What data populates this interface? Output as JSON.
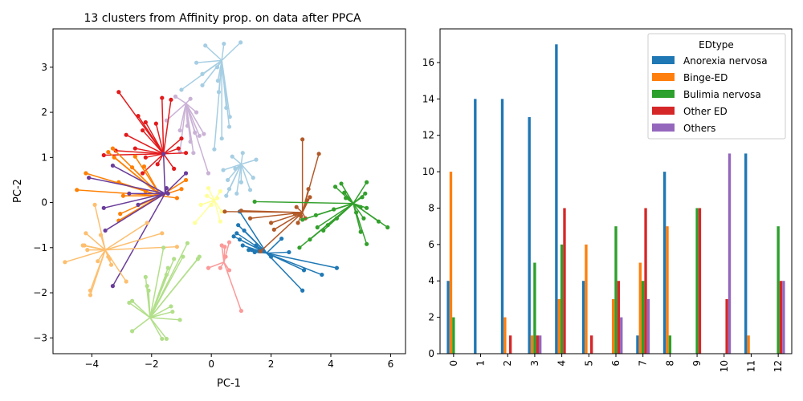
{
  "chart_data": [
    {
      "type": "scatter",
      "title": "13 clusters from Affinity prop. on data after PPCA",
      "xlabel": "PC-1",
      "ylabel": "PC-2",
      "xlim": [
        -5.3,
        6.5
      ],
      "ylim": [
        -3.35,
        3.85
      ],
      "xticks": [
        -4,
        -2,
        0,
        2,
        4,
        6
      ],
      "yticks": [
        -3,
        -2,
        -1,
        0,
        1,
        2,
        3
      ],
      "grid": false,
      "clusters": [
        {
          "color": "#a6cee3",
          "center": [
            0.35,
            3.15
          ],
          "points": [
            [
              -0.2,
              3.48
            ],
            [
              0.42,
              3.52
            ],
            [
              0.98,
              3.55
            ],
            [
              -0.5,
              3.1
            ],
            [
              -0.3,
              2.85
            ],
            [
              0.2,
              3.0
            ],
            [
              -1.0,
              2.5
            ],
            [
              -0.3,
              2.6
            ],
            [
              0.25,
              2.45
            ],
            [
              0.5,
              2.1
            ],
            [
              0.62,
              1.9
            ],
            [
              0.6,
              1.68
            ],
            [
              0.1,
              1.18
            ],
            [
              0.35,
              1.42
            ],
            [
              0.22,
              2.7
            ]
          ]
        },
        {
          "color": "#a6cee3",
          "center": [
            1.0,
            0.85
          ],
          "points": [
            [
              0.7,
              1.02
            ],
            [
              1.05,
              1.1
            ],
            [
              1.5,
              0.95
            ],
            [
              0.4,
              0.72
            ],
            [
              0.55,
              0.5
            ],
            [
              0.6,
              0.3
            ],
            [
              0.85,
              0.2
            ],
            [
              1.0,
              0.45
            ],
            [
              1.3,
              0.28
            ],
            [
              0.5,
              0.15
            ],
            [
              1.4,
              0.55
            ],
            [
              0.8,
              0.75
            ]
          ]
        },
        {
          "color": "#cab2d6",
          "center": [
            -0.85,
            2.2
          ],
          "points": [
            [
              -1.2,
              2.35
            ],
            [
              -0.7,
              2.3
            ],
            [
              -1.5,
              1.82
            ],
            [
              -1.05,
              1.6
            ],
            [
              -0.8,
              1.7
            ],
            [
              -0.55,
              1.55
            ],
            [
              -0.4,
              1.48
            ],
            [
              -0.25,
              1.52
            ],
            [
              -1.05,
              1.12
            ],
            [
              -0.6,
              1.1
            ],
            [
              -0.1,
              0.65
            ],
            [
              -0.5,
              2.0
            ],
            [
              -0.7,
              1.35
            ]
          ]
        },
        {
          "color": "#e31a1c",
          "center": [
            -1.6,
            1.08
          ],
          "points": [
            [
              -3.1,
              2.45
            ],
            [
              -2.45,
              1.92
            ],
            [
              -2.2,
              1.78
            ],
            [
              -1.65,
              2.32
            ],
            [
              -1.35,
              2.28
            ],
            [
              -2.85,
              1.5
            ],
            [
              -2.3,
              1.6
            ],
            [
              -1.85,
              1.75
            ],
            [
              -1.0,
              1.42
            ],
            [
              -2.55,
              1.2
            ],
            [
              -3.2,
              1.15
            ],
            [
              -3.6,
              1.05
            ],
            [
              -2.2,
              1.0
            ],
            [
              -1.1,
              1.2
            ],
            [
              -0.85,
              1.1
            ],
            [
              -2.3,
              0.65
            ],
            [
              -1.8,
              0.85
            ],
            [
              -1.25,
              0.75
            ]
          ]
        },
        {
          "color": "#ff7f00",
          "center": [
            -1.7,
            0.15
          ],
          "points": [
            [
              -4.2,
              0.65
            ],
            [
              -4.5,
              0.28
            ],
            [
              -3.3,
              1.2
            ],
            [
              -3.45,
              1.12
            ],
            [
              -3.25,
              1.0
            ],
            [
              -2.55,
              1.02
            ],
            [
              -2.25,
              0.8
            ],
            [
              -2.65,
              0.78
            ],
            [
              -3.1,
              0.45
            ],
            [
              -2.95,
              0.15
            ],
            [
              -3.05,
              -0.25
            ],
            [
              -3.1,
              -0.4
            ],
            [
              -1.15,
              0.1
            ],
            [
              -1.0,
              0.3
            ],
            [
              -0.85,
              0.5
            ],
            [
              -2.2,
              0.25
            ]
          ]
        },
        {
          "color": "#6a3d9a",
          "center": [
            -1.55,
            0.2
          ],
          "points": [
            [
              -3.3,
              -1.85
            ],
            [
              -3.55,
              -0.62
            ],
            [
              -3.6,
              -0.12
            ],
            [
              -3.3,
              0.82
            ],
            [
              -4.1,
              0.55
            ],
            [
              -2.75,
              0.2
            ],
            [
              -2.45,
              -0.05
            ],
            [
              -1.5,
              0.32
            ],
            [
              -1.45,
              0.2
            ],
            [
              -0.85,
              0.65
            ],
            [
              -1.6,
              1.08
            ]
          ]
        },
        {
          "color": "#ffff99",
          "center": [
            0.1,
            0.05
          ],
          "points": [
            [
              -0.1,
              0.32
            ],
            [
              0.3,
              0.25
            ],
            [
              -0.35,
              -0.05
            ],
            [
              -0.55,
              -0.45
            ],
            [
              0.35,
              -0.2
            ],
            [
              0.3,
              -0.42
            ],
            [
              0.0,
              -0.05
            ],
            [
              0.2,
              0.1
            ],
            [
              -0.15,
              0.15
            ]
          ]
        },
        {
          "color": "#fdbf6f",
          "center": [
            -3.55,
            -1.05
          ],
          "points": [
            [
              -4.9,
              -1.32
            ],
            [
              -4.3,
              -0.95
            ],
            [
              -4.2,
              -0.68
            ],
            [
              -4.15,
              -1.05
            ],
            [
              -4.05,
              -1.95
            ],
            [
              -4.05,
              -2.05
            ],
            [
              -3.9,
              -0.05
            ],
            [
              -3.7,
              -0.72
            ],
            [
              -3.8,
              -1.3
            ],
            [
              -3.45,
              -1.2
            ],
            [
              -3.4,
              -1.25
            ],
            [
              -3.35,
              -1.38
            ],
            [
              -2.85,
              -1.75
            ],
            [
              -2.15,
              -0.45
            ],
            [
              -1.65,
              -0.68
            ],
            [
              -1.15,
              -0.98
            ],
            [
              -4.25,
              -0.95
            ]
          ]
        },
        {
          "color": "#b2df8a",
          "center": [
            -2.05,
            -2.55
          ],
          "points": [
            [
              -2.65,
              -2.18
            ],
            [
              -2.75,
              -2.22
            ],
            [
              -2.65,
              -2.85
            ],
            [
              -2.2,
              -1.65
            ],
            [
              -2.15,
              -1.85
            ],
            [
              -2.1,
              -1.95
            ],
            [
              -1.6,
              -1.0
            ],
            [
              -1.5,
              -1.6
            ],
            [
              -1.45,
              -1.45
            ],
            [
              -1.35,
              -2.3
            ],
            [
              -1.3,
              -2.42
            ],
            [
              -1.05,
              -2.6
            ],
            [
              -1.5,
              -3.02
            ],
            [
              -1.65,
              -3.02
            ],
            [
              -0.95,
              -1.2
            ],
            [
              -0.8,
              -0.9
            ],
            [
              -0.45,
              -1.25
            ],
            [
              -0.4,
              -1.2
            ],
            [
              -1.25,
              -1.25
            ]
          ]
        },
        {
          "color": "#fb9a99",
          "center": [
            0.42,
            -1.32
          ],
          "points": [
            [
              0.35,
              -0.95
            ],
            [
              0.45,
              -0.98
            ],
            [
              0.6,
              -0.88
            ],
            [
              0.3,
              -1.45
            ],
            [
              0.6,
              -1.5
            ],
            [
              1.0,
              -2.4
            ],
            [
              -0.1,
              -1.45
            ],
            [
              0.48,
              -1.2
            ]
          ]
        },
        {
          "color": "#1f78b4",
          "center": [
            1.85,
            -1.12
          ],
          "points": [
            [
              0.75,
              -0.75
            ],
            [
              0.9,
              -0.5
            ],
            [
              0.85,
              -0.68
            ],
            [
              0.95,
              -0.82
            ],
            [
              1.1,
              -0.62
            ],
            [
              1.25,
              -1.05
            ],
            [
              1.35,
              -1.05
            ],
            [
              1.45,
              -1.1
            ],
            [
              1.6,
              -1.08
            ],
            [
              1.5,
              -0.95
            ],
            [
              2.0,
              -1.2
            ],
            [
              2.35,
              -0.8
            ],
            [
              2.6,
              -1.1
            ],
            [
              3.05,
              -1.95
            ],
            [
              3.1,
              -1.5
            ],
            [
              3.7,
              -1.6
            ],
            [
              4.2,
              -1.45
            ],
            [
              1.05,
              -0.95
            ],
            [
              0.95,
              -0.2
            ]
          ]
        },
        {
          "color": "#b15928",
          "center": [
            3.05,
            -0.22
          ],
          "points": [
            [
              3.05,
              1.4
            ],
            [
              3.6,
              1.08
            ],
            [
              3.25,
              0.3
            ],
            [
              3.3,
              0.12
            ],
            [
              3.2,
              0.05
            ],
            [
              2.85,
              -0.1
            ],
            [
              2.8,
              -0.25
            ],
            [
              3.0,
              -0.3
            ],
            [
              3.15,
              -0.35
            ],
            [
              2.9,
              -0.45
            ],
            [
              2.0,
              -0.45
            ],
            [
              1.3,
              -0.35
            ],
            [
              0.45,
              -0.2
            ],
            [
              1.0,
              -0.18
            ],
            [
              1.65,
              -1.08
            ],
            [
              2.1,
              -0.6
            ]
          ]
        },
        {
          "color": "#33a02c",
          "center": [
            4.75,
            -0.02
          ],
          "points": [
            [
              1.45,
              0.02
            ],
            [
              4.15,
              0.35
            ],
            [
              4.35,
              0.42
            ],
            [
              4.45,
              0.22
            ],
            [
              4.5,
              0.1
            ],
            [
              5.2,
              0.45
            ],
            [
              5.15,
              0.2
            ],
            [
              5.05,
              0.12
            ],
            [
              5.0,
              -0.1
            ],
            [
              4.85,
              -0.22
            ],
            [
              5.1,
              -0.35
            ],
            [
              5.2,
              -0.12
            ],
            [
              5.6,
              -0.42
            ],
            [
              5.9,
              -0.55
            ],
            [
              5.0,
              -0.65
            ],
            [
              5.2,
              -0.92
            ],
            [
              4.1,
              -0.15
            ],
            [
              4.2,
              -0.35
            ],
            [
              3.9,
              -0.5
            ],
            [
              3.75,
              -0.62
            ],
            [
              3.55,
              -0.55
            ],
            [
              3.5,
              -0.28
            ],
            [
              3.3,
              -0.82
            ],
            [
              3.05,
              -0.38
            ],
            [
              2.95,
              -1.0
            ]
          ]
        }
      ]
    },
    {
      "type": "bar",
      "categories": [
        "0",
        "1",
        "2",
        "3",
        "4",
        "5",
        "6",
        "7",
        "8",
        "9",
        "10",
        "11",
        "12"
      ],
      "xlabel": "",
      "ylabel": "",
      "ylim": [
        0,
        17.85
      ],
      "yticks": [
        0,
        2,
        4,
        6,
        8,
        10,
        12,
        14,
        16
      ],
      "legend_title": "EDtype",
      "legend_position": "top-right",
      "series": [
        {
          "name": "Anorexia nervosa",
          "color": "#1f77b4",
          "values": [
            4,
            14,
            14,
            13,
            17,
            4,
            0,
            1,
            10,
            0,
            0,
            11,
            0
          ]
        },
        {
          "name": "Binge-ED",
          "color": "#ff7f0e",
          "values": [
            10,
            0,
            2,
            1,
            3,
            6,
            3,
            5,
            7,
            0,
            0,
            1,
            0
          ]
        },
        {
          "name": "Bulimia nervosa",
          "color": "#2ca02c",
          "values": [
            2,
            0,
            0,
            5,
            6,
            0,
            7,
            4,
            1,
            8,
            0,
            0,
            7
          ]
        },
        {
          "name": "Other ED",
          "color": "#d62728",
          "values": [
            0,
            0,
            1,
            1,
            8,
            1,
            4,
            8,
            0,
            8,
            3,
            0,
            4
          ]
        },
        {
          "name": "Others",
          "color": "#9467bd",
          "values": [
            0,
            0,
            0,
            1,
            0,
            0,
            2,
            3,
            0,
            0,
            11,
            0,
            4
          ]
        }
      ]
    }
  ]
}
